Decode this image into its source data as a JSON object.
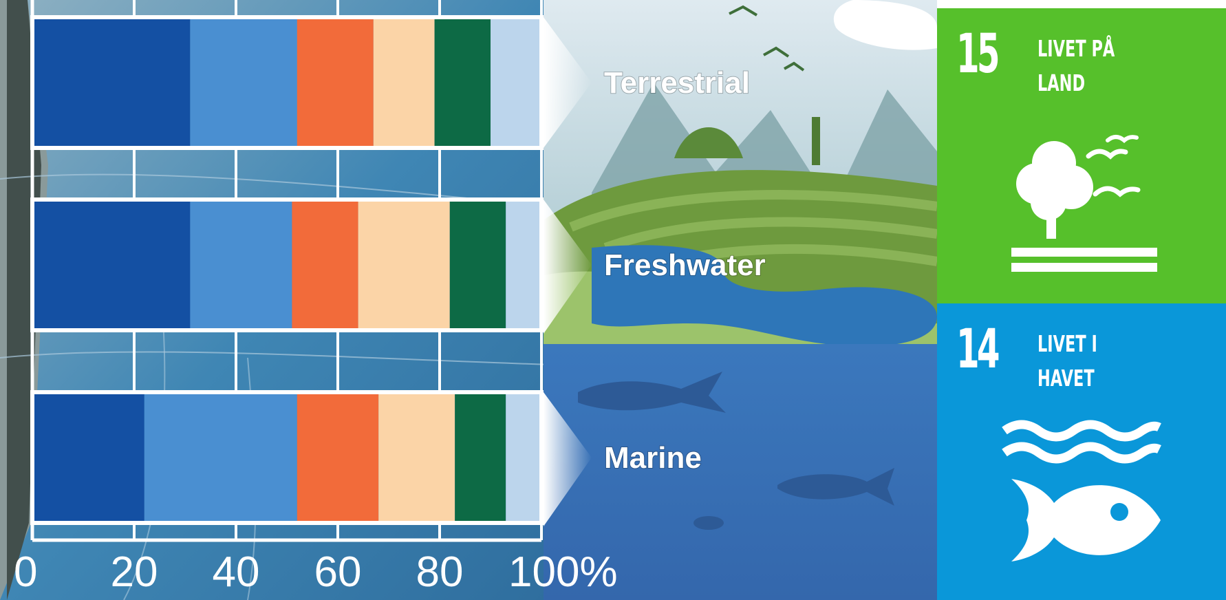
{
  "chart_data": {
    "type": "bar",
    "orientation": "horizontal",
    "stacked": true,
    "categories": [
      "Terrestrial",
      "Freshwater",
      "Marine"
    ],
    "series": [
      {
        "values": [
          31,
          31,
          22
        ],
        "color": "#1450a3"
      },
      {
        "values": [
          21,
          20,
          30
        ],
        "color": "#4a8fd1"
      },
      {
        "values": [
          15,
          13,
          16
        ],
        "color": "#f26b3a"
      },
      {
        "values": [
          12,
          18,
          15
        ],
        "color": "#fbd4a7"
      },
      {
        "values": [
          11,
          11,
          10
        ],
        "color": "#0d6a45"
      },
      {
        "values": [
          10,
          7,
          7
        ],
        "color": "#bcd5ec"
      }
    ],
    "xticks": [
      "0",
      "20",
      "40",
      "60",
      "80",
      "100%"
    ],
    "xlim": [
      0,
      100
    ],
    "legend": "none",
    "grid": true
  },
  "sdg_tiles": [
    {
      "number": "15",
      "title": "LIVET PÅ\nLAND",
      "color": "#56c02b",
      "icon": "tree-birds-icon"
    },
    {
      "number": "14",
      "title": "LIVET I\nHAVET",
      "color": "#0a97d9",
      "icon": "waves-fish-icon"
    }
  ]
}
